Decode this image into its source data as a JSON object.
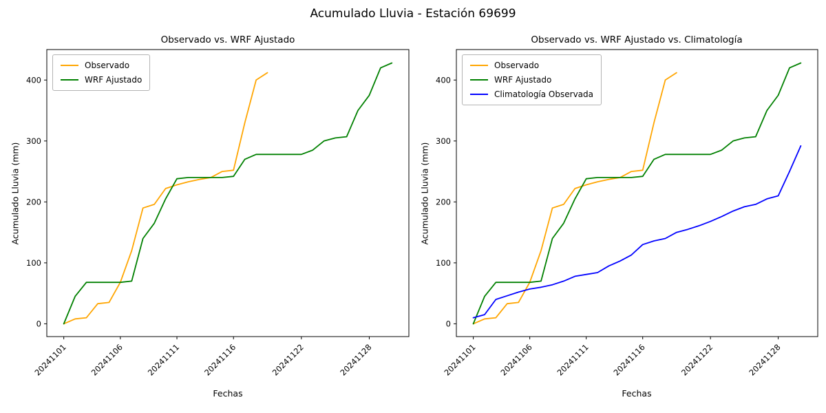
{
  "figure": {
    "suptitle": "Acumulado Lluvia - Estación 69699"
  },
  "chart_data": [
    {
      "type": "line",
      "title": "Observado vs. WRF Ajustado",
      "xlabel": "Fechas",
      "ylabel": "Acumulado Lluvia (mm)",
      "x_tick_labels": [
        "20241101",
        "20241106",
        "20241111",
        "20241116",
        "20241122",
        "20241128"
      ],
      "x_tick_days": [
        1,
        6,
        11,
        16,
        22,
        28
      ],
      "y_ticks": [
        0,
        100,
        200,
        300,
        400
      ],
      "xlim": [
        -0.5,
        31.5
      ],
      "ylim": [
        -21,
        450
      ],
      "grid": false,
      "legend_position": "upper left",
      "series": [
        {
          "name": "Observado",
          "color": "#ffa500",
          "x": [
            1,
            2,
            3,
            4,
            5,
            6,
            7,
            8,
            9,
            10,
            11,
            12,
            13,
            14,
            15,
            16,
            17,
            18,
            19
          ],
          "y": [
            0,
            8,
            10,
            33,
            35,
            68,
            120,
            190,
            196,
            222,
            228,
            233,
            237,
            240,
            250,
            252,
            330,
            400,
            412
          ]
        },
        {
          "name": "WRF Ajustado",
          "color": "#008000",
          "x": [
            1,
            2,
            3,
            4,
            5,
            6,
            7,
            8,
            9,
            10,
            11,
            12,
            13,
            14,
            15,
            16,
            17,
            18,
            19,
            20,
            21,
            22,
            23,
            24,
            25,
            26,
            27,
            28,
            29,
            30
          ],
          "y": [
            0,
            45,
            68,
            68,
            68,
            68,
            70,
            140,
            165,
            205,
            238,
            240,
            240,
            240,
            240,
            242,
            270,
            278,
            278,
            278,
            278,
            278,
            285,
            300,
            305,
            307,
            350,
            375,
            420,
            428
          ]
        }
      ]
    },
    {
      "type": "line",
      "title": "Observado vs. WRF Ajustado vs. Climatología",
      "xlabel": "Fechas",
      "ylabel": "Acumulado Lluvia (mm)",
      "x_tick_labels": [
        "20241101",
        "20241106",
        "20241111",
        "20241116",
        "20241122",
        "20241128"
      ],
      "x_tick_days": [
        1,
        6,
        11,
        16,
        22,
        28
      ],
      "y_ticks": [
        0,
        100,
        200,
        300,
        400
      ],
      "xlim": [
        -0.5,
        31.5
      ],
      "ylim": [
        -21,
        450
      ],
      "grid": false,
      "legend_position": "upper left",
      "series": [
        {
          "name": "Observado",
          "color": "#ffa500",
          "x": [
            1,
            2,
            3,
            4,
            5,
            6,
            7,
            8,
            9,
            10,
            11,
            12,
            13,
            14,
            15,
            16,
            17,
            18,
            19
          ],
          "y": [
            0,
            8,
            10,
            33,
            35,
            68,
            120,
            190,
            196,
            222,
            228,
            233,
            237,
            240,
            250,
            252,
            330,
            400,
            412
          ]
        },
        {
          "name": "WRF Ajustado",
          "color": "#008000",
          "x": [
            1,
            2,
            3,
            4,
            5,
            6,
            7,
            8,
            9,
            10,
            11,
            12,
            13,
            14,
            15,
            16,
            17,
            18,
            19,
            20,
            21,
            22,
            23,
            24,
            25,
            26,
            27,
            28,
            29,
            30
          ],
          "y": [
            0,
            45,
            68,
            68,
            68,
            68,
            70,
            140,
            165,
            205,
            238,
            240,
            240,
            240,
            240,
            242,
            270,
            278,
            278,
            278,
            278,
            278,
            285,
            300,
            305,
            307,
            350,
            375,
            420,
            428
          ]
        },
        {
          "name": "Climatología Observada",
          "color": "#0000ff",
          "x": [
            1,
            2,
            3,
            4,
            5,
            6,
            7,
            8,
            9,
            10,
            11,
            12,
            13,
            14,
            15,
            16,
            17,
            18,
            19,
            20,
            21,
            22,
            23,
            24,
            25,
            26,
            27,
            28,
            29,
            30
          ],
          "y": [
            10,
            15,
            40,
            46,
            52,
            57,
            60,
            64,
            70,
            78,
            81,
            84,
            95,
            103,
            113,
            130,
            136,
            140,
            150,
            155,
            161,
            168,
            176,
            185,
            192,
            196,
            205,
            210,
            250,
            292
          ]
        }
      ]
    }
  ]
}
